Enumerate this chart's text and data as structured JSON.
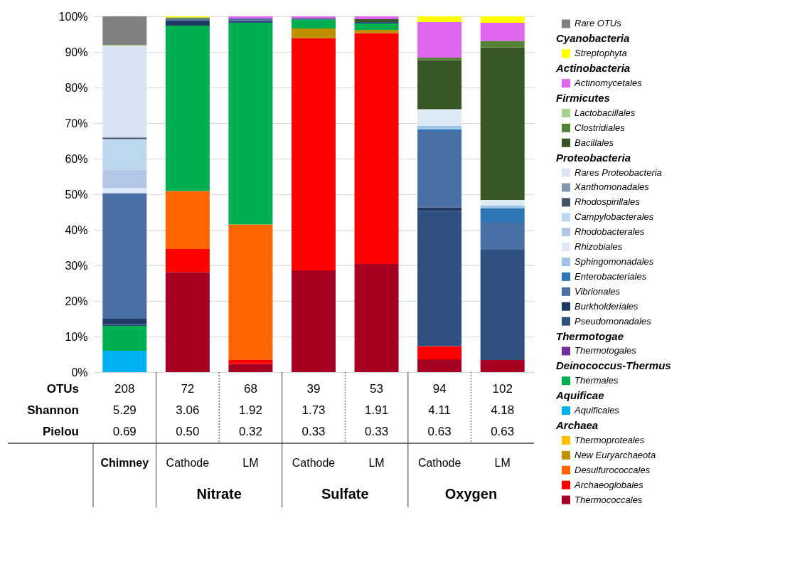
{
  "chart_data": {
    "type": "bar",
    "stacked": true,
    "categories": [
      "Chimney",
      "Cathode",
      "LM",
      "Cathode",
      "LM",
      "Cathode",
      "LM"
    ],
    "series": [
      {
        "name": "Thermococcales",
        "color": "#a50021",
        "values": [
          0,
          28.1,
          2.3,
          28.6,
          30.4,
          3.6,
          3.4
        ]
      },
      {
        "name": "Archaeoglobales",
        "color": "#ff0000",
        "values": [
          0,
          6.5,
          1.1,
          65.3,
          64.9,
          3.7,
          0
        ]
      },
      {
        "name": "Desulfurococcales",
        "color": "#ff6600",
        "values": [
          0,
          16.3,
          38.1,
          0,
          0,
          0,
          0
        ]
      },
      {
        "name": "New Euryarchaeota",
        "color": "#bf9000",
        "values": [
          0,
          0,
          0,
          2.7,
          0.9,
          0,
          0
        ]
      },
      {
        "name": "Thermoproteales",
        "color": "#ffc000",
        "values": [
          0,
          0,
          0,
          0,
          0,
          0,
          0
        ]
      },
      {
        "name": "Aquificales",
        "color": "#00b0f0",
        "values": [
          6,
          0,
          0,
          0,
          0,
          0,
          0
        ]
      },
      {
        "name": "Thermales",
        "color": "#00b050",
        "values": [
          7,
          46.5,
          56.7,
          2.5,
          1.8,
          0,
          0
        ]
      },
      {
        "name": "Thermotogales",
        "color": "#7030a0",
        "values": [
          0,
          0,
          0,
          0,
          0,
          0,
          0
        ]
      },
      {
        "name": "Pseudomonadales",
        "color": "#2f4f7f",
        "values": [
          0.5,
          0,
          0.7,
          0.4,
          0.4,
          38,
          31
        ]
      },
      {
        "name": "Burkholderiales",
        "color": "#1f3864",
        "values": [
          1.5,
          1.5,
          0,
          0,
          0,
          1,
          0
        ]
      },
      {
        "name": "Vibrionales",
        "color": "#4a6fa5",
        "values": [
          35.3,
          0.4,
          0.5,
          0,
          0,
          21.5,
          7.6
        ]
      },
      {
        "name": "Enterobacteriales",
        "color": "#2e75b6",
        "values": [
          0,
          0,
          0,
          0,
          0,
          0.4,
          4.1
        ]
      },
      {
        "name": "Sphingomonadales",
        "color": "#9dc3e6",
        "values": [
          0,
          0,
          0,
          0,
          0,
          1.0,
          0.8
        ]
      },
      {
        "name": "Rhizobiales",
        "color": "#deebf7",
        "values": [
          1.4,
          0,
          0,
          0,
          0,
          4.7,
          1.5
        ]
      },
      {
        "name": "Rhodobacterales",
        "color": "#b4c7e7",
        "values": [
          5.2,
          0,
          0,
          0,
          0,
          0,
          0
        ]
      },
      {
        "name": "Campylobacterales",
        "color": "#bdd7ee",
        "values": [
          8.6,
          0,
          0,
          0,
          0,
          0,
          0
        ]
      },
      {
        "name": "Rhodospirillales",
        "color": "#44546a",
        "values": [
          0.4,
          0,
          0,
          0,
          0,
          0,
          0
        ]
      },
      {
        "name": "Xanthomonadales",
        "color": "#8497b0",
        "values": [
          0.2,
          0,
          0,
          0,
          0,
          0,
          0
        ]
      },
      {
        "name": "Rares Proteobacteria",
        "color": "#dae3f3",
        "values": [
          25.6,
          0,
          0,
          0,
          0,
          0,
          0
        ]
      },
      {
        "name": "Bacillales",
        "color": "#375623",
        "values": [
          0,
          0,
          0,
          0,
          0.8,
          13.8,
          42.9
        ]
      },
      {
        "name": "Clostridiales",
        "color": "#548235",
        "values": [
          0,
          0.4,
          0,
          0,
          0,
          0.7,
          1.8
        ]
      },
      {
        "name": "Lactobacillales",
        "color": "#a9d18e",
        "values": [
          0.3,
          0,
          0,
          0,
          0,
          0,
          0
        ]
      },
      {
        "name": "Actinomycetales",
        "color": "#e066f0",
        "values": [
          0,
          0,
          0.6,
          0.5,
          0.8,
          10,
          5.1
        ]
      },
      {
        "name": "Streptophyta",
        "color": "#ffff00",
        "values": [
          0,
          0.3,
          0,
          0,
          0,
          1.6,
          1.8
        ]
      },
      {
        "name": "Rare OTUs",
        "color": "#808080",
        "values": [
          8,
          0,
          0,
          0,
          0,
          0,
          0
        ]
      }
    ],
    "ylim": [
      0,
      100
    ],
    "yticks": [
      {
        "value": 0,
        "label": "0%"
      },
      {
        "value": 10,
        "label": "10%"
      },
      {
        "value": 20,
        "label": "20%"
      },
      {
        "value": 30,
        "label": "30%"
      },
      {
        "value": 40,
        "label": "40%"
      },
      {
        "value": 50,
        "label": "50%"
      },
      {
        "value": 60,
        "label": "60%"
      },
      {
        "value": 70,
        "label": "70%"
      },
      {
        "value": 80,
        "label": "80%"
      },
      {
        "value": 90,
        "label": "90%"
      },
      {
        "value": 100,
        "label": "100%"
      }
    ],
    "grid": "y",
    "legend": "right",
    "annotations": [
      "OTUs",
      "Shannon",
      "Pielou",
      "208",
      "72",
      "68",
      "39",
      "53",
      "94",
      "102",
      "5.29",
      "3.06",
      "1.92",
      "1.73",
      "1.91",
      "4.11",
      "4.18",
      "0.69",
      "0.50",
      "0.32",
      "0.33",
      "0.33",
      "0.63",
      "0.63",
      "Nitrate",
      "Sulfate",
      "Oxygen",
      "Cyanobacteria",
      "Actinobacteria",
      "Firmicutes",
      "Proteobacteria",
      "Thermotogae",
      "Deinococcus-Thermus",
      "Aquificae",
      "Archaea"
    ]
  }
}
